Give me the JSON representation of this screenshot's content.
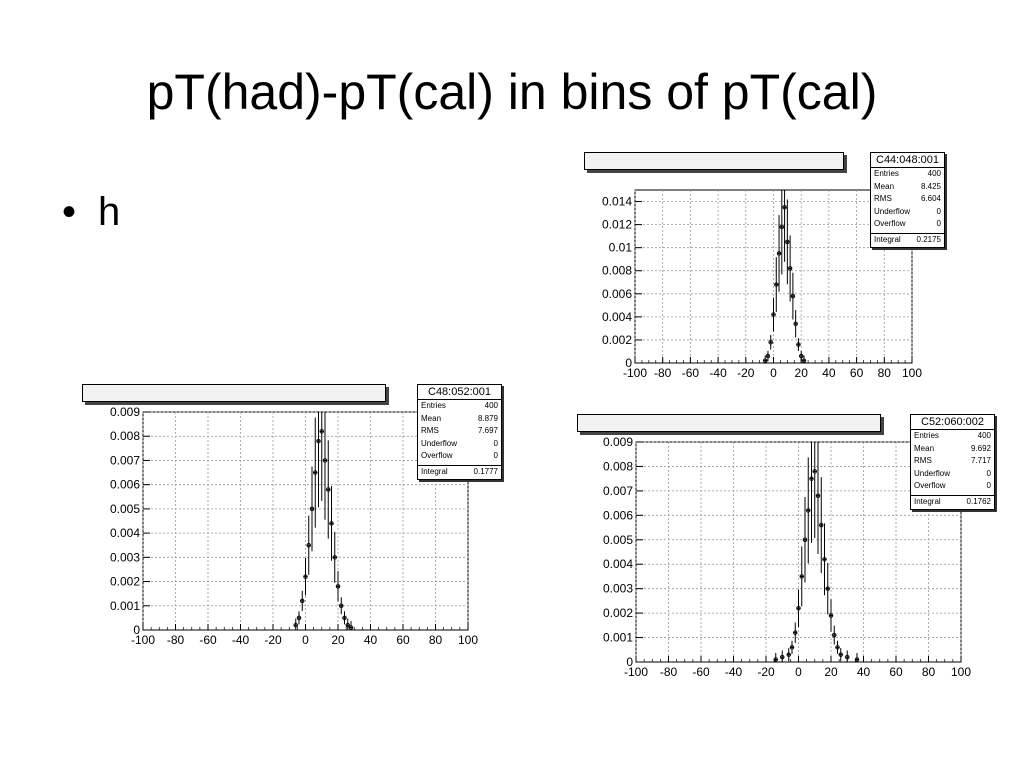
{
  "slide": {
    "title": "pT(had)-pT(cal) in bins of pT(cal)",
    "bullets": [
      "h"
    ]
  },
  "colors": {
    "line": "#000000",
    "grid": "#999999",
    "frame": "#000000"
  },
  "chart_data": [
    {
      "type": "histogram",
      "position": "top-right",
      "grid": true,
      "xlim": [
        -100,
        100
      ],
      "ylim": [
        0,
        0.015
      ],
      "x_ticks": [
        "-100",
        "-80",
        "-60",
        "-40",
        "-20",
        "0",
        "20",
        "40",
        "60",
        "80",
        "100"
      ],
      "y_ticks": [
        "0",
        "0.002",
        "0.004",
        "0.006",
        "0.008",
        "0.01",
        "0.012",
        "0.014"
      ],
      "stats": {
        "name": "C44:048:001",
        "rows": [
          {
            "label": "Entries",
            "value": "400"
          },
          {
            "label": "Mean",
            "value": "8.425"
          },
          {
            "label": "RMS",
            "value": "6.604"
          },
          {
            "label": "Underflow",
            "value": "0"
          },
          {
            "label": "Overflow",
            "value": "0"
          }
        ],
        "integral": {
          "label": "Integral",
          "value": "0.2175"
        }
      },
      "mean": 8.4,
      "rms": 6.6,
      "peak": 0.0135,
      "x": [
        -6,
        -4,
        -2,
        0,
        2,
        4,
        6,
        8,
        10,
        12,
        14,
        16,
        18,
        20,
        22
      ],
      "values": [
        0.0002,
        0.0006,
        0.0018,
        0.0042,
        0.0068,
        0.0095,
        0.0118,
        0.0135,
        0.0105,
        0.0082,
        0.0058,
        0.0034,
        0.0016,
        0.0006,
        0.0002
      ]
    },
    {
      "type": "histogram",
      "position": "bottom-left",
      "grid": true,
      "xlim": [
        -100,
        100
      ],
      "ylim": [
        0,
        0.009
      ],
      "x_ticks": [
        "-100",
        "-80",
        "-60",
        "-40",
        "-20",
        "0",
        "20",
        "40",
        "60",
        "80",
        "100"
      ],
      "y_ticks": [
        "0",
        "0.001",
        "0.002",
        "0.003",
        "0.004",
        "0.005",
        "0.006",
        "0.007",
        "0.008",
        "0.009"
      ],
      "stats": {
        "name": "C48:052:001",
        "rows": [
          {
            "label": "Entries",
            "value": "400"
          },
          {
            "label": "Mean",
            "value": "8.879"
          },
          {
            "label": "RMS",
            "value": "7.697"
          },
          {
            "label": "Underflow",
            "value": "0"
          },
          {
            "label": "Overflow",
            "value": "0"
          }
        ],
        "integral": {
          "label": "Integral",
          "value": "0.1777"
        }
      },
      "mean": 8.9,
      "rms": 7.7,
      "peak": 0.0082,
      "x": [
        -6,
        -4,
        -2,
        0,
        2,
        4,
        6,
        8,
        10,
        12,
        14,
        16,
        18,
        20,
        22,
        24,
        26,
        28
      ],
      "values": [
        0.0002,
        0.0005,
        0.0012,
        0.0022,
        0.0035,
        0.005,
        0.0065,
        0.0078,
        0.0082,
        0.007,
        0.0058,
        0.0044,
        0.003,
        0.0018,
        0.001,
        0.0005,
        0.0002,
        0.0001
      ]
    },
    {
      "type": "histogram",
      "position": "bottom-right",
      "grid": true,
      "xlim": [
        -100,
        100
      ],
      "ylim": [
        0,
        0.009
      ],
      "x_ticks": [
        "-100",
        "-80",
        "-60",
        "-40",
        "-20",
        "0",
        "20",
        "40",
        "60",
        "80",
        "100"
      ],
      "y_ticks": [
        "0",
        "0.001",
        "0.002",
        "0.003",
        "0.004",
        "0.005",
        "0.006",
        "0.007",
        "0.008",
        "0.009"
      ],
      "stats": {
        "name": "C52:060:002",
        "rows": [
          {
            "label": "Entries",
            "value": "400"
          },
          {
            "label": "Mean",
            "value": "9.692"
          },
          {
            "label": "RMS",
            "value": "7.717"
          },
          {
            "label": "Underflow",
            "value": "0"
          },
          {
            "label": "Overflow",
            "value": "0"
          }
        ],
        "integral": {
          "label": "Integral",
          "value": "0.1762"
        }
      },
      "mean": 9.7,
      "rms": 7.7,
      "peak": 0.0078,
      "x": [
        -14,
        -10,
        -6,
        -4,
        -2,
        0,
        2,
        4,
        6,
        8,
        10,
        12,
        14,
        16,
        18,
        20,
        22,
        24,
        26,
        30,
        36
      ],
      "values": [
        0.0001,
        0.0002,
        0.0003,
        0.0006,
        0.0012,
        0.0022,
        0.0035,
        0.005,
        0.0062,
        0.0075,
        0.0078,
        0.0068,
        0.0056,
        0.0042,
        0.003,
        0.0019,
        0.0011,
        0.0006,
        0.0003,
        0.0002,
        0.0001
      ]
    }
  ]
}
